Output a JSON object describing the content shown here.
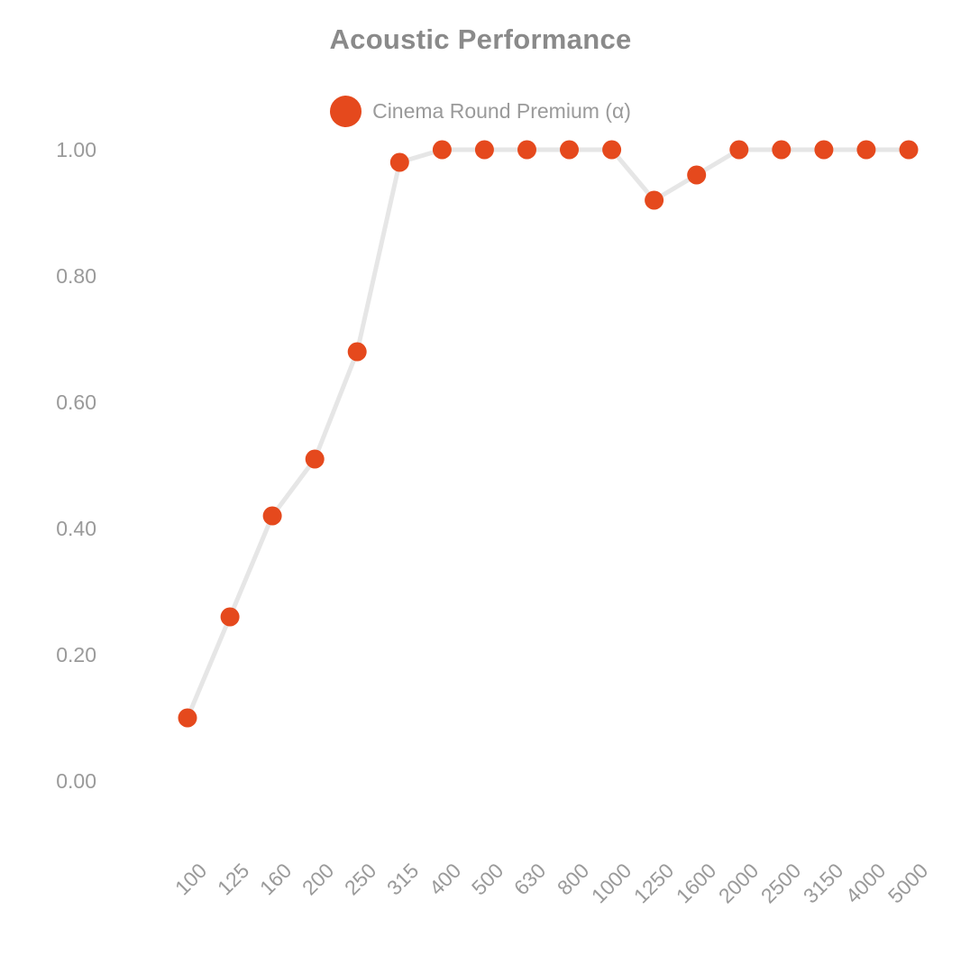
{
  "chart_data": {
    "type": "line",
    "title": "Acoustic Performance",
    "xlabel": "",
    "ylabel": "",
    "grid": false,
    "legend_position": "top",
    "categories": [
      "100",
      "125",
      "160",
      "200",
      "250",
      "315",
      "400",
      "500",
      "630",
      "800",
      "1000",
      "1250",
      "1600",
      "2000",
      "2500",
      "3150",
      "4000",
      "5000"
    ],
    "series": [
      {
        "name": "Cinema Round Premium (α)",
        "values": [
          0.1,
          0.26,
          0.42,
          0.51,
          0.68,
          0.98,
          1.0,
          1.0,
          1.0,
          1.0,
          1.0,
          0.92,
          0.96,
          1.0,
          1.0,
          1.0,
          1.0,
          1.0
        ],
        "point_color": "#E5491D",
        "line_color": "#E6E6E6"
      }
    ],
    "y_axis": {
      "range": [
        0,
        1.0
      ],
      "ticks": [
        {
          "label": "1.00",
          "value": 1.0
        },
        {
          "label": "0.80",
          "value": 0.8
        },
        {
          "label": "0.60",
          "value": 0.6
        },
        {
          "label": "0.40",
          "value": 0.4
        },
        {
          "label": "0.20",
          "value": 0.2
        },
        {
          "label": "0.00",
          "value": 0.0
        }
      ]
    },
    "text_colors": {
      "title": "#8A8A8A",
      "axis": "#9A9A9A",
      "legend": "#9A9A9A"
    }
  }
}
